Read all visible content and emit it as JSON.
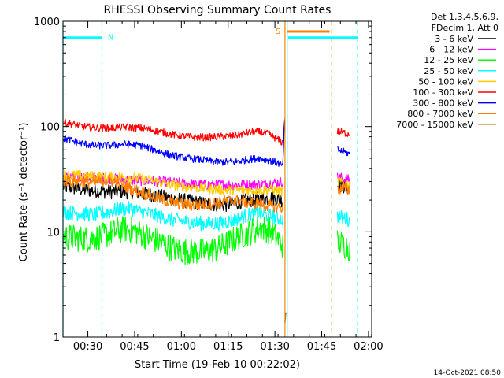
{
  "chart_data": {
    "type": "line",
    "title": "RHESSI Observing Summary Count Rates",
    "xlabel": "Start Time (19-Feb-10 00:22:02)",
    "ylabel": "Count Rate (s⁻¹ detector⁻¹)",
    "x_unit": "minutes after 00:22:02 (19-Feb-10)",
    "xlim": [
      0,
      99
    ],
    "ylim": [
      1,
      1000
    ],
    "y_scale": "log",
    "grid": false,
    "legend_position": "top-right outside plot",
    "legend_header": [
      "Det 1,3,4,5,6,9,",
      "FDecim 1, Att 0"
    ],
    "x_ticks": [
      {
        "label": "00:30",
        "x": 7.97
      },
      {
        "label": "00:45",
        "x": 22.97
      },
      {
        "label": "01:00",
        "x": 37.97
      },
      {
        "label": "01:15",
        "x": 52.97
      },
      {
        "label": "01:30",
        "x": 67.97
      },
      {
        "label": "01:45",
        "x": 82.97
      },
      {
        "label": "02:00",
        "x": 97.97
      }
    ],
    "y_ticks": [
      {
        "label": "1",
        "y": 1
      },
      {
        "label": "10",
        "y": 10
      },
      {
        "label": "100",
        "y": 100
      },
      {
        "label": "1000",
        "y": 1000
      }
    ],
    "series": [
      {
        "name": "3 - 6 keV",
        "color": "#000000",
        "noise": 0.07,
        "x": [
          0,
          7,
          15,
          22,
          30,
          38,
          45,
          52,
          60,
          67,
          70.5,
          83.5,
          88,
          92
        ],
        "y": [
          27,
          25,
          24,
          24,
          22,
          20,
          18.5,
          18,
          20,
          21,
          20,
          null,
          28,
          26
        ]
      },
      {
        "name": "6 - 12 keV",
        "color": "#ff00ff",
        "noise": 0.05,
        "x": [
          0,
          7,
          15,
          22,
          30,
          38,
          45,
          52,
          60,
          67,
          70.5,
          83.5,
          88,
          92
        ],
        "y": [
          33,
          33,
          32,
          31,
          30,
          29,
          28,
          28,
          28,
          29,
          30,
          null,
          33,
          31
        ]
      },
      {
        "name": "12 - 25 keV",
        "color": "#00ff00",
        "noise": 0.13,
        "x": [
          0,
          7,
          10,
          15,
          18,
          22,
          27,
          31,
          35,
          39,
          42,
          46,
          50,
          55,
          60,
          64,
          67,
          70.5,
          83.5,
          88,
          92
        ],
        "y": [
          9,
          8.5,
          8.7,
          9.5,
          10.5,
          10.5,
          9,
          8,
          7,
          6.5,
          6.5,
          6.5,
          7,
          8.5,
          10,
          11,
          10,
          7.5,
          null,
          8,
          7
        ]
      },
      {
        "name": "25 - 50 keV",
        "color": "#00ffff",
        "noise": 0.07,
        "x": [
          0,
          5,
          10,
          15,
          18,
          22,
          27,
          31,
          35,
          40,
          45,
          50,
          55,
          60,
          63,
          67,
          70.5,
          83.5,
          88,
          92
        ],
        "y": [
          15.5,
          15,
          14.5,
          15.5,
          16.5,
          16.5,
          15,
          14,
          13,
          12.5,
          12,
          12,
          13,
          14.5,
          15,
          14,
          13,
          null,
          14,
          13
        ]
      },
      {
        "name": "50 - 100 keV",
        "color": "#ffcc00",
        "noise": 0.05,
        "x": [
          0,
          7,
          15,
          22,
          30,
          38,
          45,
          52,
          60,
          67,
          70.5,
          83.5,
          88,
          92
        ],
        "y": [
          35,
          34,
          33,
          33,
          30,
          27,
          26,
          25,
          25,
          25,
          24,
          null,
          30,
          28
        ]
      },
      {
        "name": "100 - 300 keV",
        "color": "#ff0000",
        "noise": 0.035,
        "x": [
          0,
          5,
          10,
          15,
          20,
          25,
          30,
          35,
          40,
          45,
          50,
          55,
          60,
          63,
          66,
          69,
          70.5,
          70.9,
          71.2,
          83.5,
          88,
          92
        ],
        "y": [
          110,
          102,
          97,
          97,
          99,
          97,
          91,
          84,
          80,
          79,
          80,
          82,
          88,
          89,
          85,
          75,
          70,
          100,
          120,
          null,
          90,
          85
        ]
      },
      {
        "name": "300 - 800 keV",
        "color": "#0000ff",
        "noise": 0.035,
        "x": [
          0,
          5,
          10,
          15,
          20,
          25,
          30,
          35,
          40,
          45,
          50,
          55,
          60,
          63,
          66,
          69,
          70.5,
          70.9,
          71.2,
          83.5,
          88,
          92
        ],
        "y": [
          78,
          70,
          66,
          66,
          68,
          66,
          59,
          53,
          50,
          48,
          46,
          46,
          49,
          50,
          48,
          45,
          42,
          90,
          110,
          null,
          60,
          55
        ]
      },
      {
        "name": "800 - 7000 keV",
        "color": "#ff8000",
        "noise": 0.06,
        "x": [
          0,
          5,
          10,
          15,
          20,
          25,
          30,
          35,
          40,
          45,
          50,
          55,
          60,
          65,
          70.5,
          83.5,
          88,
          92
        ],
        "y": [
          31,
          30,
          29,
          31,
          27,
          24,
          21,
          19,
          18,
          18,
          19,
          20,
          19,
          18,
          17,
          null,
          26,
          25
        ]
      },
      {
        "name": "7000 - 15000 keV",
        "color": "#a07000",
        "noise": 0.05,
        "x": [
          71.2,
          71.6
        ],
        "y": [
          1.3,
          1.9
        ]
      }
    ],
    "flags": [
      {
        "label": "N",
        "color": "#00ffff",
        "x_start": 0,
        "x_end": 12.5,
        "value": 700
      },
      {
        "label": "S",
        "color": "#ff8000",
        "x_start": 72,
        "x_end": 85.5,
        "value": 800
      },
      {
        "label": "",
        "color": "#00ffff",
        "x_start": 72.2,
        "x_end": 94.5,
        "value": 700
      }
    ],
    "vertical_lines": [
      {
        "x": 0,
        "color": "#00ffff",
        "style": "solid"
      },
      {
        "x": 12.5,
        "color": "#00ffff",
        "style": "dashed"
      },
      {
        "x": 71.2,
        "color": "#ff8000",
        "style": "solid"
      },
      {
        "x": 71.9,
        "color": "#00ffff",
        "style": "solid"
      },
      {
        "x": 86.2,
        "color": "#ff8000",
        "style": "dashed"
      },
      {
        "x": 94.5,
        "color": "#00ffff",
        "style": "dashed"
      }
    ]
  },
  "footer": {
    "timestamp": "14-Oct-2021 08:50"
  }
}
